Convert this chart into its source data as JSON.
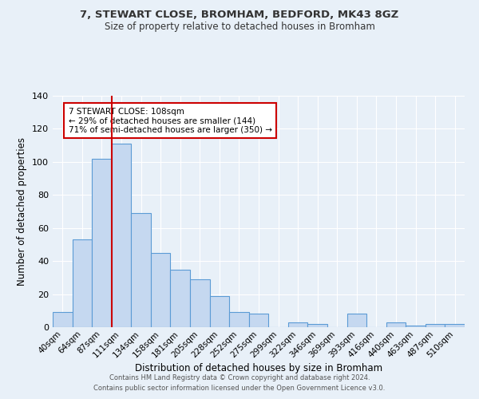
{
  "title1": "7, STEWART CLOSE, BROMHAM, BEDFORD, MK43 8GZ",
  "title2": "Size of property relative to detached houses in Bromham",
  "xlabel": "Distribution of detached houses by size in Bromham",
  "ylabel": "Number of detached properties",
  "bar_labels": [
    "40sqm",
    "64sqm",
    "87sqm",
    "111sqm",
    "134sqm",
    "158sqm",
    "181sqm",
    "205sqm",
    "228sqm",
    "252sqm",
    "275sqm",
    "299sqm",
    "322sqm",
    "346sqm",
    "369sqm",
    "393sqm",
    "416sqm",
    "440sqm",
    "463sqm",
    "487sqm",
    "510sqm"
  ],
  "bar_values": [
    9,
    53,
    102,
    111,
    69,
    45,
    35,
    29,
    19,
    9,
    8,
    0,
    3,
    2,
    0,
    8,
    0,
    3,
    1,
    2,
    2
  ],
  "bar_color": "#c5d8f0",
  "bar_edge_color": "#5b9bd5",
  "background_color": "#e8f0f8",
  "grid_color": "#ffffff",
  "vline_color": "#cc0000",
  "vline_position": 2.5,
  "annotation_text": "7 STEWART CLOSE: 108sqm\n← 29% of detached houses are smaller (144)\n71% of semi-detached houses are larger (350) →",
  "annotation_box_color": "#ffffff",
  "annotation_box_edge": "#cc0000",
  "footer1": "Contains HM Land Registry data © Crown copyright and database right 2024.",
  "footer2": "Contains public sector information licensed under the Open Government Licence v3.0.",
  "ylim": [
    0,
    140
  ],
  "yticks": [
    0,
    20,
    40,
    60,
    80,
    100,
    120,
    140
  ]
}
